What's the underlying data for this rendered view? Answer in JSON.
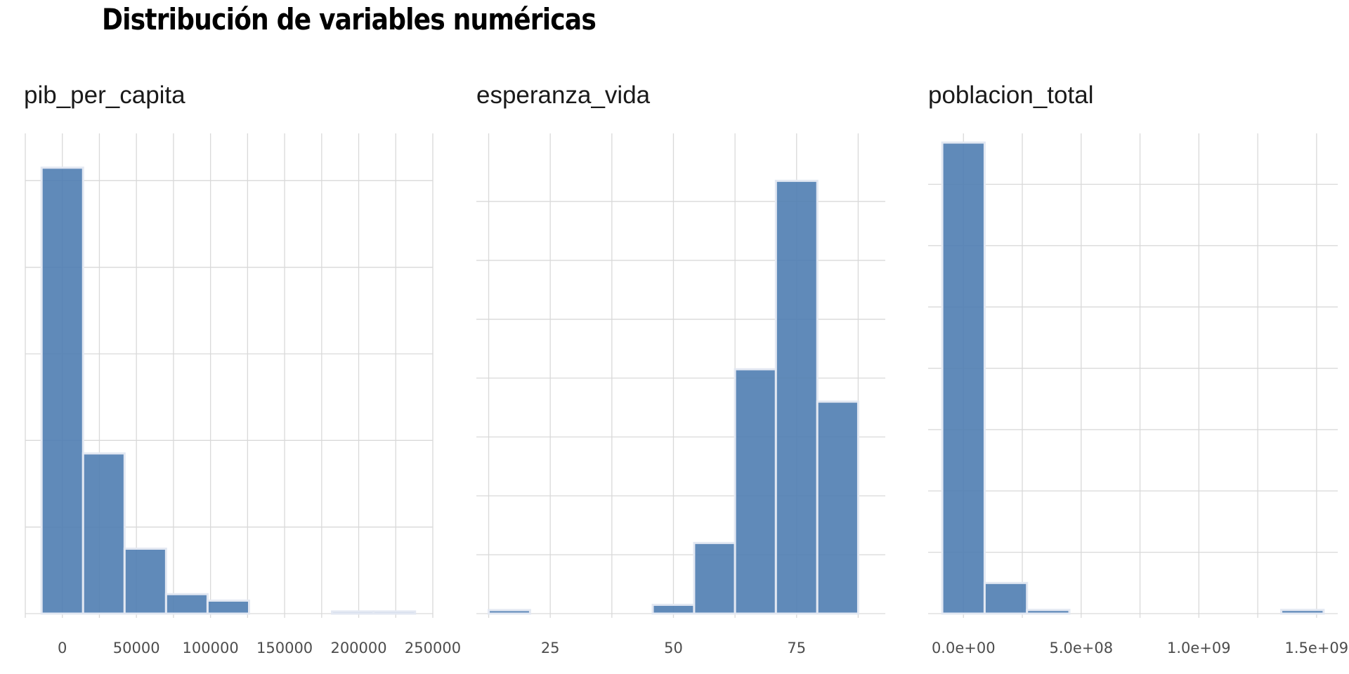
{
  "title": "Distribución de variables numéricas",
  "chart_data": [
    {
      "type": "bar",
      "title": "pib_per_capita",
      "xlabel": "",
      "ylabel": "",
      "xlim": [
        -25000,
        250000
      ],
      "ylim": [
        0,
        102
      ],
      "x_ticks": [
        0,
        50000,
        100000,
        150000,
        200000,
        250000
      ],
      "x_tick_labels": [
        "0",
        "50000",
        "100000",
        "150000",
        "200000",
        "250000"
      ],
      "y_gridlines": [
        0,
        20,
        40,
        60,
        80,
        100
      ],
      "bins": [
        {
          "x0": -14000,
          "x1": 14000,
          "count": 103
        },
        {
          "x0": 14000,
          "x1": 42000,
          "count": 37
        },
        {
          "x0": 42000,
          "x1": 70000,
          "count": 15
        },
        {
          "x0": 70000,
          "x1": 98000,
          "count": 4.5
        },
        {
          "x0": 98000,
          "x1": 126000,
          "count": 3
        },
        {
          "x0": 182000,
          "x1": 210000,
          "count": 0.5
        },
        {
          "x0": 210000,
          "x1": 238000,
          "count": 0.5
        }
      ],
      "grid": true
    },
    {
      "type": "bar",
      "title": "esperanza_vida",
      "xlabel": "",
      "ylabel": "",
      "xlim": [
        10,
        93
      ],
      "ylim": [
        0,
        75
      ],
      "x_ticks": [
        25,
        50,
        75
      ],
      "x_tick_labels": [
        "25",
        "50",
        "75"
      ],
      "y_gridlines": [
        0,
        10,
        20,
        30,
        40,
        50,
        60,
        70
      ],
      "bins": [
        {
          "x0": 12.5,
          "x1": 20.9,
          "count": 0.6
        },
        {
          "x0": 45.8,
          "x1": 54.2,
          "count": 1.5
        },
        {
          "x0": 54.2,
          "x1": 62.5,
          "count": 12
        },
        {
          "x0": 62.5,
          "x1": 70.8,
          "count": 41.5
        },
        {
          "x0": 70.8,
          "x1": 79.2,
          "count": 73.5
        },
        {
          "x0": 79.2,
          "x1": 87.5,
          "count": 36
        }
      ],
      "grid": true
    },
    {
      "type": "bar",
      "title": "poblacion_total",
      "xlabel": "",
      "ylabel": "",
      "xlim": [
        -150000000,
        1590000000
      ],
      "ylim": [
        0,
        180
      ],
      "x_ticks": [
        0,
        500000000,
        1000000000,
        1500000000
      ],
      "x_tick_labels": [
        "0.0e+00",
        "5.0e+08",
        "1.0e+09",
        "1.5e+09"
      ],
      "y_gridlines": [
        0,
        25,
        50,
        75,
        100,
        125,
        150,
        175
      ],
      "bins": [
        {
          "x0": -90000000,
          "x1": 90000000,
          "count": 192
        },
        {
          "x0": 90000000,
          "x1": 270000000,
          "count": 12.5
        },
        {
          "x0": 270000000,
          "x1": 450000000,
          "count": 1.5
        },
        {
          "x0": 1350000000,
          "x1": 1530000000,
          "count": 1.5
        }
      ],
      "grid": true
    }
  ]
}
